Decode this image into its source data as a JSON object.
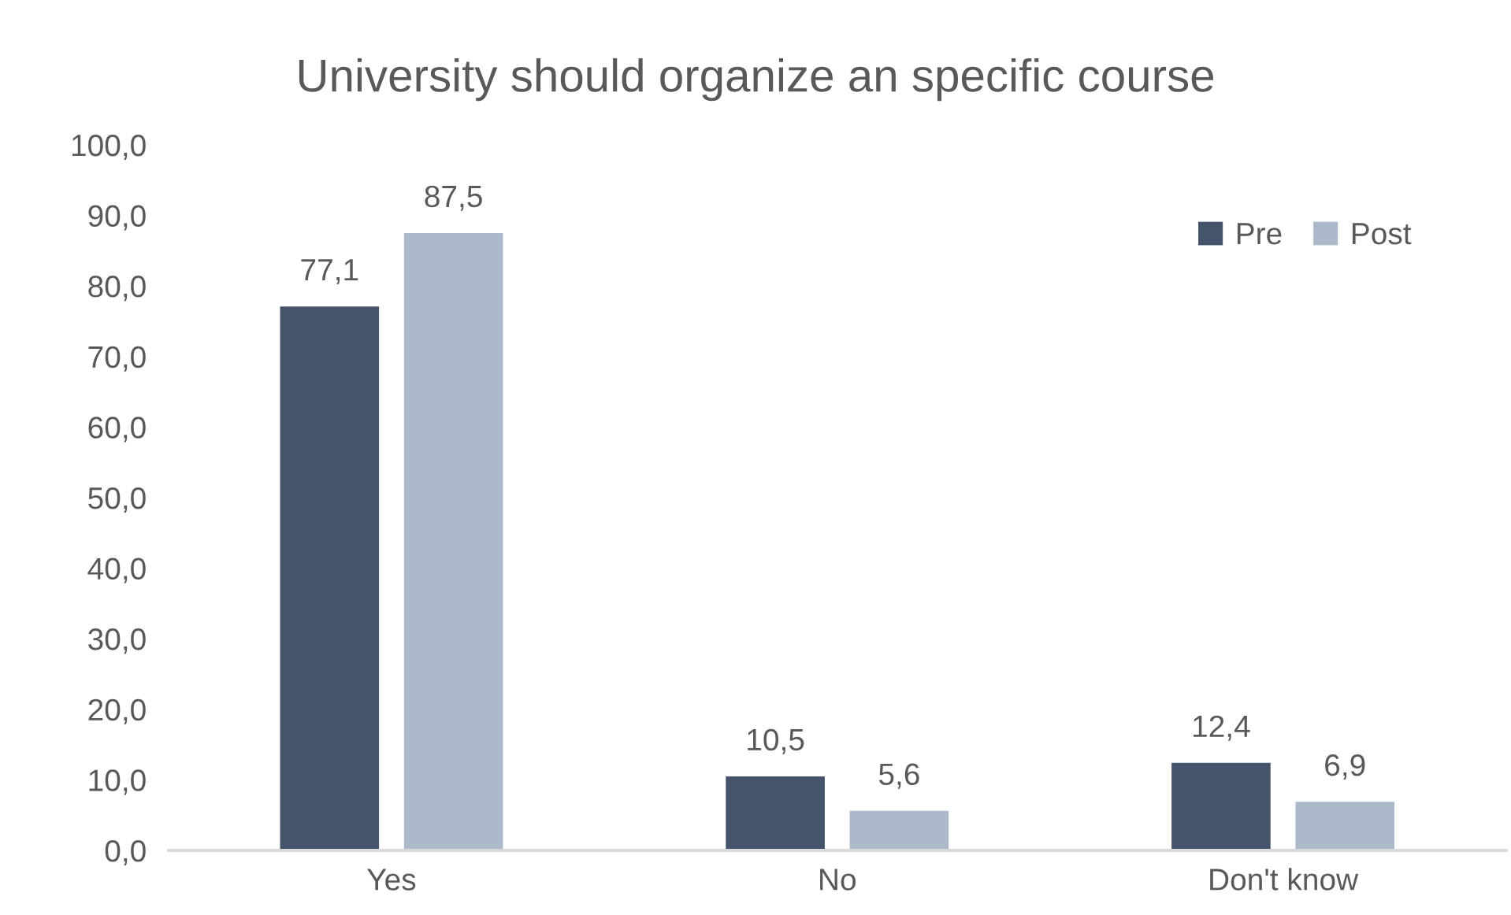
{
  "chart_data": {
    "type": "bar",
    "title": "University should organize an specific course",
    "categories": [
      "Yes",
      "No",
      "Don't know"
    ],
    "series": [
      {
        "name": "Pre",
        "color": "#44546a",
        "values": [
          77.1,
          10.5,
          12.4
        ],
        "value_labels": [
          "77,1",
          "10,5",
          "12,4"
        ]
      },
      {
        "name": "Post",
        "color": "#acb9ca",
        "values": [
          87.5,
          5.6,
          6.9
        ],
        "value_labels": [
          "87,5",
          "5,6",
          "6,9"
        ]
      }
    ],
    "ylim": [
      0,
      100
    ],
    "yticks": [
      {
        "value": 0,
        "label": "0,0"
      },
      {
        "value": 10,
        "label": "10,0"
      },
      {
        "value": 20,
        "label": "20,0"
      },
      {
        "value": 30,
        "label": "30,0"
      },
      {
        "value": 40,
        "label": "40,0"
      },
      {
        "value": 50,
        "label": "50,0"
      },
      {
        "value": 60,
        "label": "60,0"
      },
      {
        "value": 70,
        "label": "70,0"
      },
      {
        "value": 80,
        "label": "80,0"
      },
      {
        "value": 90,
        "label": "90,0"
      },
      {
        "value": 100,
        "label": "100,0"
      }
    ],
    "grid": false,
    "legend": "top right"
  }
}
